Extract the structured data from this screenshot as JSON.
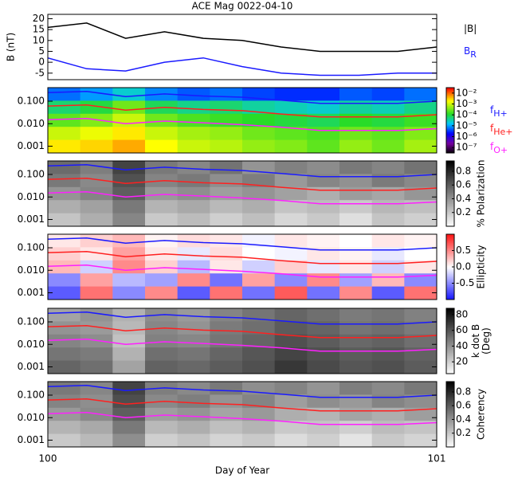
{
  "chart_data": [
    {
      "type": "line",
      "title": "ACE Mag 0022-04-10",
      "ylabel": "B (nT)",
      "x": [
        100,
        100.1,
        100.2,
        100.3,
        100.4,
        100.5,
        100.6,
        100.7,
        100.8,
        100.9,
        101
      ],
      "xlim": [
        100,
        101
      ],
      "ylim": [
        -8,
        22
      ],
      "yticks": [
        20,
        15,
        10,
        5,
        0,
        -5
      ],
      "series": [
        {
          "name": "|B|",
          "color": "#000000",
          "values": [
            16,
            18,
            11,
            14,
            11,
            10,
            7,
            5,
            5,
            5,
            7
          ]
        },
        {
          "name": "B",
          "sub": "R",
          "color": "#1a1aff",
          "values": [
            2,
            -3,
            -4,
            0,
            2,
            -2,
            -5,
            -6,
            -6,
            -5,
            -5
          ]
        }
      ]
    },
    {
      "type": "spectrogram",
      "log": true,
      "legend": true,
      "colormap": "rainbow",
      "x": [
        100,
        100.1,
        100.2,
        100.3,
        100.4,
        100.5,
        100.6,
        100.7,
        100.8,
        100.9,
        101
      ],
      "xlim": [
        100,
        101
      ],
      "ylim": [
        0.0005,
        0.4
      ],
      "yticks": [
        {
          "value": 0.1,
          "label": "0.100"
        },
        {
          "value": 0.01,
          "label": "0.010"
        },
        0.001
      ],
      "zlim": [
        -7.5,
        -1.5
      ],
      "zticks": [
        {
          "value": -2,
          "label": "10⁻²"
        },
        {
          "value": -3,
          "label": "10⁻³"
        },
        {
          "value": -4,
          "label": "10⁻⁴"
        },
        {
          "value": -5,
          "label": "10⁻⁵"
        },
        {
          "value": -6,
          "label": "10⁻⁶"
        },
        {
          "value": -7,
          "label": "10⁻⁷"
        }
      ],
      "z": [
        [
          -5.2,
          -5.0,
          -4.6,
          -5.1,
          -5.3,
          -5.2,
          -5.4,
          -5.5,
          -5.5,
          -5.3,
          -5.4,
          -5.2
        ],
        [
          -4.2,
          -4.0,
          -3.5,
          -4.1,
          -4.3,
          -4.2,
          -4.4,
          -4.5,
          -4.6,
          -4.4,
          -4.5,
          -4.3
        ],
        [
          -3.6,
          -3.4,
          -3.0,
          -3.5,
          -3.7,
          -3.8,
          -3.9,
          -4.0,
          -4.1,
          -3.9,
          -4.0,
          -3.8
        ],
        [
          -3.0,
          -2.8,
          -2.6,
          -3.0,
          -3.2,
          -3.3,
          -3.5,
          -3.6,
          -3.7,
          -3.5,
          -3.6,
          -3.4
        ],
        [
          -2.6,
          -2.5,
          -2.3,
          -2.7,
          -3.0,
          -3.1,
          -3.3,
          -3.4,
          -3.6,
          -3.3,
          -3.5,
          -3.2
        ]
      ],
      "series": [
        {
          "name": "f",
          "sub": "H+",
          "color": "#1a1aff",
          "values": [
            0.24,
            0.27,
            0.16,
            0.21,
            0.17,
            0.15,
            0.11,
            0.08,
            0.08,
            0.08,
            0.1
          ]
        },
        {
          "name": "f",
          "sub": "He+",
          "color": "#ff2020",
          "values": [
            0.061,
            0.068,
            0.04,
            0.053,
            0.043,
            0.038,
            0.027,
            0.02,
            0.02,
            0.02,
            0.025
          ]
        },
        {
          "name": "f",
          "sub": "O+",
          "color": "#ff20ff",
          "values": [
            0.015,
            0.017,
            0.01,
            0.013,
            0.011,
            0.009,
            0.007,
            0.005,
            0.005,
            0.005,
            0.006
          ]
        }
      ]
    },
    {
      "type": "spectrogram",
      "log": true,
      "colormap": "gray_r",
      "colorbar_label": [
        "% Polarization"
      ],
      "x": [
        100,
        100.1,
        100.2,
        100.3,
        100.4,
        100.5,
        100.6,
        100.7,
        100.8,
        100.9,
        101
      ],
      "xlim": [
        100,
        101
      ],
      "ylim": [
        0.0005,
        0.4
      ],
      "yticks": [
        {
          "value": 0.1,
          "label": "0.100"
        },
        {
          "value": 0.01,
          "label": "0.010"
        },
        0.001
      ],
      "zlim": [
        0,
        0.95
      ],
      "zticks": [
        0.8,
        0.6,
        0.4,
        0.2
      ],
      "z": [
        [
          0.55,
          0.48,
          0.7,
          0.5,
          0.45,
          0.52,
          0.4,
          0.47,
          0.43,
          0.5,
          0.46,
          0.52
        ],
        [
          0.5,
          0.44,
          0.65,
          0.46,
          0.5,
          0.42,
          0.48,
          0.38,
          0.45,
          0.41,
          0.49,
          0.44
        ],
        [
          0.4,
          0.46,
          0.6,
          0.38,
          0.42,
          0.36,
          0.4,
          0.35,
          0.3,
          0.37,
          0.33,
          0.39
        ],
        [
          0.3,
          0.35,
          0.5,
          0.28,
          0.32,
          0.26,
          0.3,
          0.22,
          0.25,
          0.2,
          0.27,
          0.24
        ],
        [
          0.22,
          0.3,
          0.45,
          0.2,
          0.25,
          0.18,
          0.24,
          0.15,
          0.2,
          0.12,
          0.22,
          0.18
        ]
      ],
      "series": [
        {
          "name": "f",
          "sub": "H+",
          "color": "#1a1aff",
          "values": [
            0.24,
            0.27,
            0.16,
            0.21,
            0.17,
            0.15,
            0.11,
            0.08,
            0.08,
            0.08,
            0.1
          ]
        },
        {
          "name": "f",
          "sub": "He+",
          "color": "#ff2020",
          "values": [
            0.061,
            0.068,
            0.04,
            0.053,
            0.043,
            0.038,
            0.027,
            0.02,
            0.02,
            0.02,
            0.025
          ]
        },
        {
          "name": "f",
          "sub": "O+",
          "color": "#ff20ff",
          "values": [
            0.015,
            0.017,
            0.01,
            0.013,
            0.011,
            0.009,
            0.007,
            0.005,
            0.005,
            0.005,
            0.006
          ]
        }
      ]
    },
    {
      "type": "spectrogram",
      "log": true,
      "colormap": "bwr",
      "colorbar_label": [
        "Ellipticity"
      ],
      "x": [
        100,
        100.1,
        100.2,
        100.3,
        100.4,
        100.5,
        100.6,
        100.7,
        100.8,
        100.9,
        101
      ],
      "xlim": [
        100,
        101
      ],
      "ylim": [
        0.0005,
        0.4
      ],
      "yticks": [
        {
          "value": 0.1,
          "label": "0.100"
        },
        {
          "value": 0.01,
          "label": "0.010"
        },
        0.001
      ],
      "zlim": [
        -1,
        1
      ],
      "zticks": [
        0.5,
        {
          "value": 0,
          "label": "0.0"
        },
        -0.5
      ],
      "z": [
        [
          0.1,
          0.2,
          0.3,
          0.05,
          0.15,
          0.1,
          -0.05,
          0.1,
          0.05,
          0.0,
          0.1,
          0.05
        ],
        [
          0.2,
          0.1,
          0.4,
          0.1,
          -0.1,
          0.15,
          0.0,
          -0.05,
          0.1,
          0.05,
          -0.1,
          0.0
        ],
        [
          0.3,
          -0.2,
          0.5,
          0.2,
          -0.3,
          0.1,
          -0.2,
          0.2,
          -0.1,
          0.1,
          -0.2,
          0.1
        ],
        [
          -0.5,
          0.4,
          -0.3,
          -0.4,
          0.5,
          -0.6,
          0.4,
          -0.5,
          0.5,
          -0.4,
          0.3,
          -0.5
        ],
        [
          -0.7,
          0.6,
          -0.5,
          0.5,
          -0.7,
          0.6,
          -0.6,
          0.7,
          -0.6,
          0.5,
          -0.7,
          0.6
        ]
      ],
      "series": [
        {
          "name": "f",
          "sub": "H+",
          "color": "#1a1aff",
          "values": [
            0.24,
            0.27,
            0.16,
            0.21,
            0.17,
            0.15,
            0.11,
            0.08,
            0.08,
            0.08,
            0.1
          ]
        },
        {
          "name": "f",
          "sub": "He+",
          "color": "#ff2020",
          "values": [
            0.061,
            0.068,
            0.04,
            0.053,
            0.043,
            0.038,
            0.027,
            0.02,
            0.02,
            0.02,
            0.025
          ]
        },
        {
          "name": "f",
          "sub": "O+",
          "color": "#ff20ff",
          "values": [
            0.015,
            0.017,
            0.01,
            0.013,
            0.011,
            0.009,
            0.007,
            0.005,
            0.005,
            0.005,
            0.006
          ]
        }
      ]
    },
    {
      "type": "spectrogram",
      "log": true,
      "colormap": "gray_r",
      "colorbar_label": [
        "k dot B",
        "(Deg)"
      ],
      "x": [
        100,
        100.1,
        100.2,
        100.3,
        100.4,
        100.5,
        100.6,
        100.7,
        100.8,
        100.9,
        101
      ],
      "xlim": [
        100,
        101
      ],
      "ylim": [
        0.0005,
        0.4
      ],
      "yticks": [
        {
          "value": 0.1,
          "label": "0.100"
        },
        {
          "value": 0.01,
          "label": "0.010"
        },
        0.001
      ],
      "zlim": [
        5,
        88
      ],
      "zticks": [
        80,
        60,
        40,
        20
      ],
      "z": [
        [
          35,
          40,
          30,
          42,
          38,
          45,
          50,
          55,
          52,
          48,
          50,
          46
        ],
        [
          40,
          38,
          28,
          44,
          40,
          48,
          52,
          58,
          55,
          50,
          52,
          48
        ],
        [
          45,
          42,
          25,
          46,
          44,
          50,
          55,
          62,
          58,
          54,
          56,
          52
        ],
        [
          50,
          48,
          30,
          52,
          50,
          55,
          60,
          66,
          62,
          58,
          60,
          56
        ],
        [
          55,
          52,
          35,
          56,
          54,
          58,
          62,
          70,
          64,
          60,
          62,
          58
        ]
      ],
      "series": [
        {
          "name": "f",
          "sub": "H+",
          "color": "#1a1aff",
          "values": [
            0.24,
            0.27,
            0.16,
            0.21,
            0.17,
            0.15,
            0.11,
            0.08,
            0.08,
            0.08,
            0.1
          ]
        },
        {
          "name": "f",
          "sub": "He+",
          "color": "#ff2020",
          "values": [
            0.061,
            0.068,
            0.04,
            0.053,
            0.043,
            0.038,
            0.027,
            0.02,
            0.02,
            0.02,
            0.025
          ]
        },
        {
          "name": "f",
          "sub": "O+",
          "color": "#ff20ff",
          "values": [
            0.015,
            0.017,
            0.01,
            0.013,
            0.011,
            0.009,
            0.007,
            0.005,
            0.005,
            0.005,
            0.006
          ]
        }
      ]
    },
    {
      "type": "spectrogram",
      "log": true,
      "colormap": "gray_r",
      "colorbar_label": [
        "Coherency"
      ],
      "x": [
        100,
        100.1,
        100.2,
        100.3,
        100.4,
        100.5,
        100.6,
        100.7,
        100.8,
        100.9,
        101
      ],
      "xlim": [
        100,
        101
      ],
      "ylim": [
        0.0005,
        0.4
      ],
      "xticks": [
        100,
        101
      ],
      "xlabel": "Day of Year",
      "yticks": [
        {
          "value": 0.1,
          "label": "0.100"
        },
        {
          "value": 0.01,
          "label": "0.010"
        },
        0.001
      ],
      "zlim": [
        0,
        0.95
      ],
      "zticks": [
        0.8,
        0.6,
        0.4,
        0.2
      ],
      "z": [
        [
          0.5,
          0.45,
          0.7,
          0.48,
          0.44,
          0.5,
          0.42,
          0.46,
          0.4,
          0.48,
          0.44,
          0.5
        ],
        [
          0.46,
          0.42,
          0.66,
          0.44,
          0.48,
          0.4,
          0.46,
          0.36,
          0.42,
          0.38,
          0.46,
          0.42
        ],
        [
          0.38,
          0.44,
          0.6,
          0.36,
          0.4,
          0.34,
          0.38,
          0.3,
          0.28,
          0.34,
          0.3,
          0.36
        ],
        [
          0.28,
          0.32,
          0.5,
          0.26,
          0.3,
          0.24,
          0.28,
          0.2,
          0.22,
          0.18,
          0.25,
          0.22
        ],
        [
          0.2,
          0.26,
          0.42,
          0.18,
          0.22,
          0.16,
          0.2,
          0.13,
          0.18,
          0.1,
          0.2,
          0.16
        ]
      ],
      "series": [
        {
          "name": "f",
          "sub": "H+",
          "color": "#1a1aff",
          "values": [
            0.24,
            0.27,
            0.16,
            0.21,
            0.17,
            0.15,
            0.11,
            0.08,
            0.08,
            0.08,
            0.1
          ]
        },
        {
          "name": "f",
          "sub": "He+",
          "color": "#ff2020",
          "values": [
            0.061,
            0.068,
            0.04,
            0.053,
            0.043,
            0.038,
            0.027,
            0.02,
            0.02,
            0.02,
            0.025
          ]
        },
        {
          "name": "f",
          "sub": "O+",
          "color": "#ff20ff",
          "values": [
            0.015,
            0.017,
            0.01,
            0.013,
            0.011,
            0.009,
            0.007,
            0.005,
            0.005,
            0.005,
            0.006
          ]
        }
      ]
    }
  ]
}
